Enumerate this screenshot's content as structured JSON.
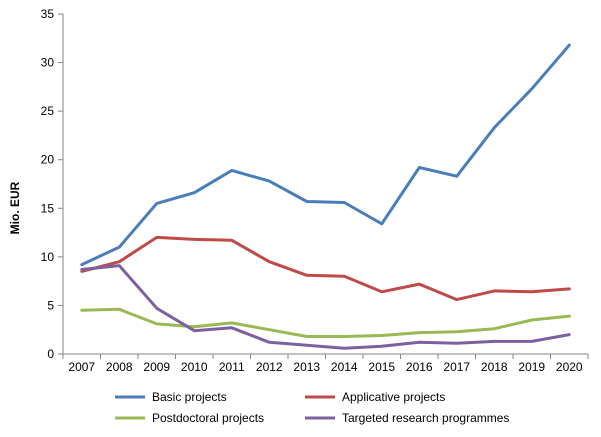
{
  "chart_data": {
    "type": "line",
    "title": "",
    "xlabel": "",
    "ylabel": "Mio. EUR",
    "ylim": [
      0,
      35
    ],
    "yticks": [
      0,
      5,
      10,
      15,
      20,
      25,
      30,
      35
    ],
    "grid": false,
    "legend_position": "bottom",
    "categories": [
      "2007",
      "2008",
      "2009",
      "2010",
      "2011",
      "2012",
      "2013",
      "2014",
      "2015",
      "2016",
      "2017",
      "2018",
      "2019",
      "2020"
    ],
    "series": [
      {
        "name": "Basic projects",
        "color": "#4a7ebb",
        "values": [
          9.2,
          11.0,
          15.5,
          16.6,
          18.9,
          17.8,
          15.7,
          15.6,
          13.4,
          19.2,
          18.3,
          23.3,
          27.3,
          31.8
        ]
      },
      {
        "name": "Applicative projects",
        "color": "#be4b48",
        "values": [
          8.5,
          9.5,
          12.0,
          11.8,
          11.7,
          9.5,
          8.1,
          8.0,
          6.4,
          7.2,
          5.6,
          6.5,
          6.4,
          6.7
        ]
      },
      {
        "name": "Postdoctoral projects",
        "color": "#98b954",
        "values": [
          4.5,
          4.6,
          3.1,
          2.8,
          3.2,
          2.5,
          1.8,
          1.8,
          1.9,
          2.2,
          2.3,
          2.6,
          3.5,
          3.9
        ]
      },
      {
        "name": "Targeted research programmes",
        "color": "#7d60a0",
        "values": [
          8.7,
          9.1,
          4.7,
          2.4,
          2.7,
          1.2,
          0.9,
          0.6,
          0.8,
          1.2,
          1.1,
          1.3,
          1.3,
          2.0
        ]
      }
    ]
  }
}
